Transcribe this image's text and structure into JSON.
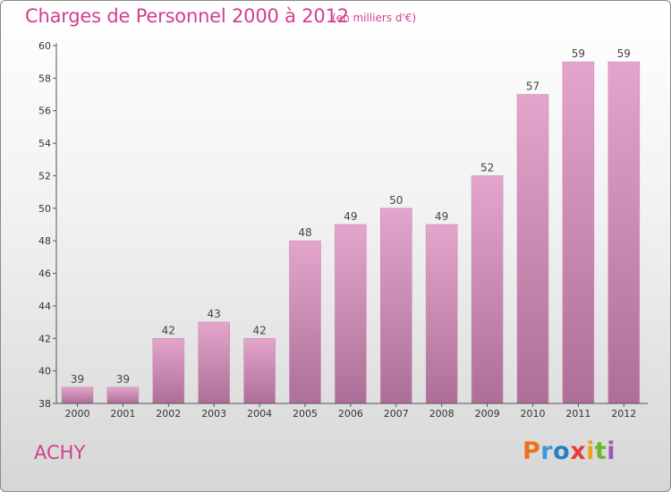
{
  "title": "Charges de Personnel 2000 à 2012",
  "unit_note": "(en milliers d'€)",
  "commune": "ACHY",
  "logo": {
    "letters": [
      "P",
      "r",
      "o",
      "x",
      "i",
      "t",
      "i"
    ],
    "colors": [
      "#e8731c",
      "#3a9ad9",
      "#2a7fc0",
      "#e83c3c",
      "#e8a51c",
      "#6ab82e",
      "#9b59b6"
    ]
  },
  "colors": {
    "accent": "#d23f8d",
    "bar_top": "#e4a5cc",
    "bar_bottom": "#ad6f97"
  },
  "chart_data": {
    "type": "bar",
    "categories": [
      "2000",
      "2001",
      "2002",
      "2003",
      "2004",
      "2005",
      "2006",
      "2007",
      "2008",
      "2009",
      "2010",
      "2011",
      "2012"
    ],
    "values": [
      39,
      39,
      42,
      43,
      42,
      48,
      49,
      50,
      49,
      52,
      57,
      59,
      59
    ],
    "ylim": [
      38,
      60
    ],
    "yticks": [
      38,
      40,
      42,
      44,
      46,
      48,
      50,
      52,
      54,
      56,
      58,
      60
    ],
    "grid": false,
    "legend": "none"
  }
}
